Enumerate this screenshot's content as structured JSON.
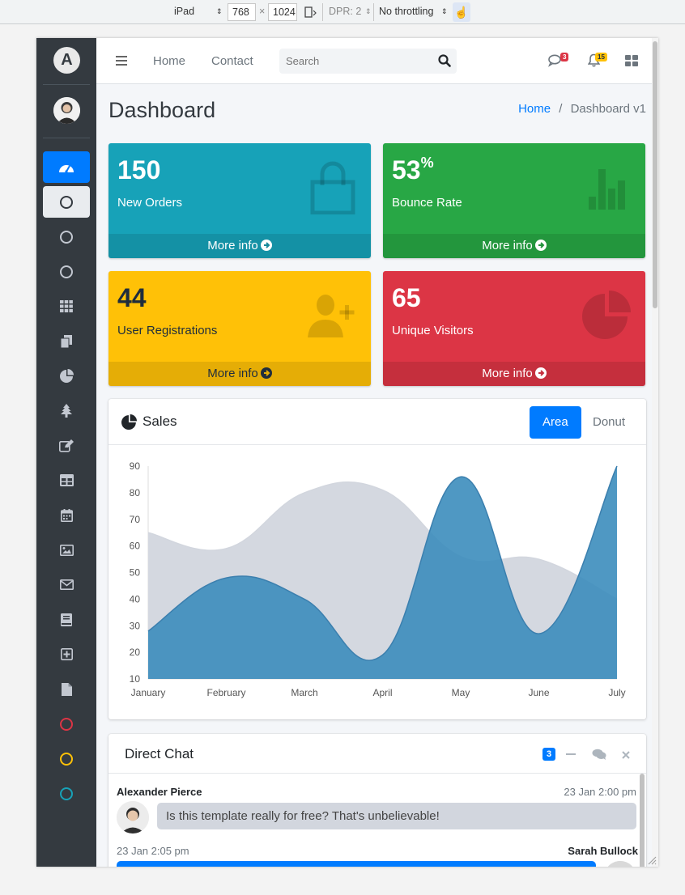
{
  "devtools": {
    "device": "iPad",
    "width": "768",
    "height": "1024",
    "dpr": "DPR: 2",
    "throttling": "No throttling"
  },
  "topnav": {
    "home": "Home",
    "contact": "Contact",
    "search_placeholder": "Search",
    "messages_count": "3",
    "notifications_count": "15"
  },
  "header": {
    "title": "Dashboard",
    "breadcrumb_home": "Home",
    "breadcrumb_sep": "/",
    "breadcrumb_current": "Dashboard v1"
  },
  "small_boxes": [
    {
      "value": "150",
      "sup": "",
      "label": "New Orders",
      "footer": "More info",
      "color": "#17a2b8"
    },
    {
      "value": "53",
      "sup": "%",
      "label": "Bounce Rate",
      "footer": "More info",
      "color": "#28a745"
    },
    {
      "value": "44",
      "sup": "",
      "label": "User Registrations",
      "footer": "More info",
      "color": "#ffc107"
    },
    {
      "value": "65",
      "sup": "",
      "label": "Unique Visitors",
      "footer": "More info",
      "color": "#dc3545"
    }
  ],
  "sales": {
    "title": "Sales",
    "tab_area": "Area",
    "tab_donut": "Donut"
  },
  "chart_data": {
    "type": "area",
    "categories": [
      "January",
      "February",
      "March",
      "April",
      "May",
      "June",
      "July"
    ],
    "series": [
      {
        "values": [
          65,
          59,
          80,
          81,
          56,
          55,
          40
        ],
        "color": "#d2d6de"
      },
      {
        "values": [
          28,
          48,
          40,
          19,
          86,
          27,
          90
        ],
        "color": "#3c8dbc"
      }
    ],
    "yticks": [
      10,
      20,
      30,
      40,
      50,
      60,
      70,
      80,
      90
    ],
    "ylim": [
      10,
      90
    ]
  },
  "chat": {
    "title": "Direct Chat",
    "badge": "3",
    "messages": [
      {
        "name": "Alexander Pierce",
        "time": "23 Jan 2:00 pm",
        "text": "Is this template really for free? That's unbelievable!"
      },
      {
        "name": "Sarah Bullock",
        "time": "23 Jan 2:05 pm",
        "text": ""
      }
    ]
  }
}
